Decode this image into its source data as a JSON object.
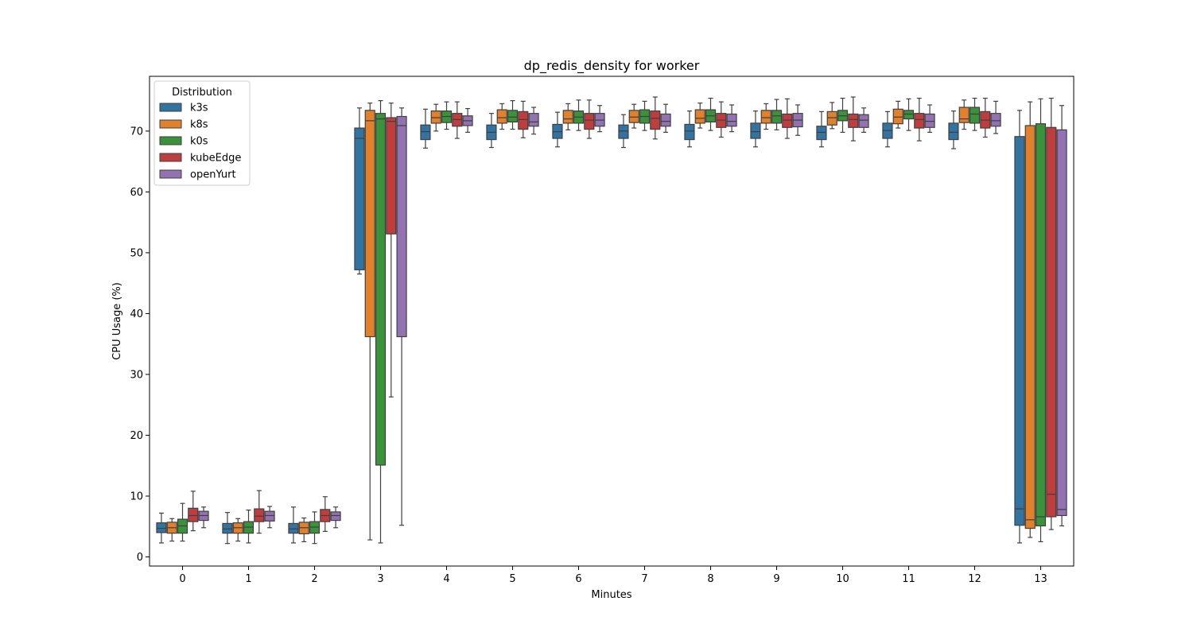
{
  "chart_data": {
    "type": "box",
    "title": "dp_redis_density for worker",
    "xlabel": "Minutes",
    "ylabel": "CPU Usage (%)",
    "ylim": [
      -1.5,
      79
    ],
    "yticks": [
      0,
      10,
      20,
      30,
      40,
      50,
      60,
      70
    ],
    "categories": [
      "0",
      "1",
      "2",
      "3",
      "4",
      "5",
      "6",
      "7",
      "8",
      "9",
      "10",
      "11",
      "12",
      "13"
    ],
    "grid": false,
    "legend": {
      "title": "Distribution",
      "placement": "top-left"
    },
    "series": [
      {
        "name": "k3s",
        "color": "#3274a1",
        "boxes": [
          {
            "lo": 2.3,
            "q1": 4.0,
            "med": 4.7,
            "q3": 5.6,
            "hi": 7.2
          },
          {
            "lo": 2.2,
            "q1": 3.9,
            "med": 4.6,
            "q3": 5.5,
            "hi": 7.3
          },
          {
            "lo": 2.3,
            "q1": 3.9,
            "med": 4.6,
            "q3": 5.5,
            "hi": 8.2
          },
          {
            "lo": 46.5,
            "q1": 47.2,
            "med": 68.8,
            "q3": 70.5,
            "hi": 73.8
          },
          {
            "lo": 67.2,
            "q1": 68.6,
            "med": 69.9,
            "q3": 71.0,
            "hi": 73.6
          },
          {
            "lo": 67.3,
            "q1": 68.6,
            "med": 69.8,
            "q3": 71.0,
            "hi": 72.9
          },
          {
            "lo": 67.4,
            "q1": 68.8,
            "med": 69.9,
            "q3": 71.1,
            "hi": 73.1
          },
          {
            "lo": 67.3,
            "q1": 68.8,
            "med": 70.0,
            "q3": 71.0,
            "hi": 72.7
          },
          {
            "lo": 67.4,
            "q1": 68.6,
            "med": 70.0,
            "q3": 71.1,
            "hi": 73.3
          },
          {
            "lo": 67.4,
            "q1": 68.8,
            "med": 69.9,
            "q3": 71.3,
            "hi": 73.3
          },
          {
            "lo": 67.4,
            "q1": 68.6,
            "med": 69.8,
            "q3": 70.8,
            "hi": 73.2
          },
          {
            "lo": 67.4,
            "q1": 68.8,
            "med": 70.1,
            "q3": 71.3,
            "hi": 73.2
          },
          {
            "lo": 67.1,
            "q1": 68.6,
            "med": 69.8,
            "q3": 71.3,
            "hi": 73.3
          },
          {
            "lo": 2.3,
            "q1": 5.2,
            "med": 7.9,
            "q3": 69.1,
            "hi": 73.4
          }
        ]
      },
      {
        "name": "k8s",
        "color": "#e1812c",
        "boxes": [
          {
            "lo": 2.6,
            "q1": 3.9,
            "med": 4.8,
            "q3": 5.7,
            "hi": 6.3
          },
          {
            "lo": 2.6,
            "q1": 3.9,
            "med": 4.8,
            "q3": 5.6,
            "hi": 6.3
          },
          {
            "lo": 2.5,
            "q1": 3.8,
            "med": 4.8,
            "q3": 5.7,
            "hi": 6.4
          },
          {
            "lo": 2.8,
            "q1": 36.2,
            "med": 71.7,
            "q3": 73.4,
            "hi": 74.6
          },
          {
            "lo": 70.0,
            "q1": 71.3,
            "med": 72.2,
            "q3": 73.3,
            "hi": 74.4
          },
          {
            "lo": 70.3,
            "q1": 71.3,
            "med": 72.2,
            "q3": 73.5,
            "hi": 74.5
          },
          {
            "lo": 70.2,
            "q1": 71.3,
            "med": 72.0,
            "q3": 73.4,
            "hi": 74.5
          },
          {
            "lo": 70.5,
            "q1": 71.4,
            "med": 72.3,
            "q3": 73.4,
            "hi": 74.4
          },
          {
            "lo": 70.5,
            "q1": 71.3,
            "med": 72.1,
            "q3": 73.5,
            "hi": 74.6
          },
          {
            "lo": 70.3,
            "q1": 71.3,
            "med": 72.2,
            "q3": 73.4,
            "hi": 74.5
          },
          {
            "lo": 70.4,
            "q1": 71.0,
            "med": 72.2,
            "q3": 73.2,
            "hi": 74.7
          },
          {
            "lo": 70.5,
            "q1": 71.2,
            "med": 72.3,
            "q3": 73.6,
            "hi": 74.9
          },
          {
            "lo": 70.3,
            "q1": 71.4,
            "med": 72.0,
            "q3": 73.9,
            "hi": 75.1
          },
          {
            "lo": 3.2,
            "q1": 4.7,
            "med": 6.1,
            "q3": 70.9,
            "hi": 74.8
          }
        ]
      },
      {
        "name": "k0s",
        "color": "#3a923a",
        "boxes": [
          {
            "lo": 2.6,
            "q1": 3.9,
            "med": 5.1,
            "q3": 6.2,
            "hi": 8.8
          },
          {
            "lo": 2.3,
            "q1": 3.9,
            "med": 4.9,
            "q3": 5.8,
            "hi": 7.7
          },
          {
            "lo": 2.2,
            "q1": 3.9,
            "med": 4.9,
            "q3": 5.8,
            "hi": 7.4
          },
          {
            "lo": 2.3,
            "q1": 15.1,
            "med": 72.0,
            "q3": 72.9,
            "hi": 75.0
          },
          {
            "lo": 70.3,
            "q1": 71.4,
            "med": 72.4,
            "q3": 73.3,
            "hi": 74.8
          },
          {
            "lo": 70.3,
            "q1": 71.5,
            "med": 72.3,
            "q3": 73.4,
            "hi": 75.0
          },
          {
            "lo": 70.1,
            "q1": 71.3,
            "med": 72.3,
            "q3": 73.3,
            "hi": 75.1
          },
          {
            "lo": 70.1,
            "q1": 71.3,
            "med": 72.4,
            "q3": 73.5,
            "hi": 74.9
          },
          {
            "lo": 70.1,
            "q1": 71.5,
            "med": 72.5,
            "q3": 73.5,
            "hi": 75.4
          },
          {
            "lo": 70.2,
            "q1": 71.3,
            "med": 72.5,
            "q3": 73.4,
            "hi": 75.2
          },
          {
            "lo": 69.8,
            "q1": 71.7,
            "med": 72.5,
            "q3": 73.4,
            "hi": 75.4
          },
          {
            "lo": 70.1,
            "q1": 72.0,
            "med": 72.8,
            "q3": 73.4,
            "hi": 75.3
          },
          {
            "lo": 70.1,
            "q1": 71.3,
            "med": 72.8,
            "q3": 73.9,
            "hi": 75.4
          },
          {
            "lo": 2.5,
            "q1": 5.1,
            "med": 6.6,
            "q3": 71.2,
            "hi": 75.3
          }
        ]
      },
      {
        "name": "kubeEdge",
        "color": "#c03d3e",
        "boxes": [
          {
            "lo": 4.3,
            "q1": 5.8,
            "med": 6.8,
            "q3": 8.0,
            "hi": 10.8
          },
          {
            "lo": 3.9,
            "q1": 5.8,
            "med": 6.7,
            "q3": 7.9,
            "hi": 10.9
          },
          {
            "lo": 4.2,
            "q1": 5.8,
            "med": 6.8,
            "q3": 7.8,
            "hi": 9.9
          },
          {
            "lo": 26.3,
            "q1": 53.1,
            "med": 71.6,
            "q3": 72.2,
            "hi": 74.6
          },
          {
            "lo": 68.8,
            "q1": 70.8,
            "med": 71.9,
            "q3": 72.9,
            "hi": 74.8
          },
          {
            "lo": 68.9,
            "q1": 70.3,
            "med": 71.9,
            "q3": 73.2,
            "hi": 74.9
          },
          {
            "lo": 68.8,
            "q1": 70.3,
            "med": 71.8,
            "q3": 72.9,
            "hi": 75.1
          },
          {
            "lo": 68.7,
            "q1": 70.3,
            "med": 72.1,
            "q3": 73.3,
            "hi": 75.6
          },
          {
            "lo": 69.0,
            "q1": 70.6,
            "med": 71.8,
            "q3": 72.9,
            "hi": 74.8
          },
          {
            "lo": 68.8,
            "q1": 70.6,
            "med": 71.8,
            "q3": 72.8,
            "hi": 75.3
          },
          {
            "lo": 68.4,
            "q1": 70.6,
            "med": 71.9,
            "q3": 72.8,
            "hi": 75.6
          },
          {
            "lo": 68.4,
            "q1": 70.5,
            "med": 71.9,
            "q3": 72.9,
            "hi": 75.4
          },
          {
            "lo": 69.0,
            "q1": 70.5,
            "med": 71.8,
            "q3": 73.2,
            "hi": 75.4
          },
          {
            "lo": 4.5,
            "q1": 6.6,
            "med": 10.3,
            "q3": 70.6,
            "hi": 75.4
          }
        ]
      },
      {
        "name": "openYurt",
        "color": "#9372b2",
        "boxes": [
          {
            "lo": 4.8,
            "q1": 6.0,
            "med": 6.8,
            "q3": 7.5,
            "hi": 8.2
          },
          {
            "lo": 4.8,
            "q1": 5.9,
            "med": 6.8,
            "q3": 7.5,
            "hi": 8.3
          },
          {
            "lo": 4.8,
            "q1": 6.0,
            "med": 6.8,
            "q3": 7.4,
            "hi": 8.2
          },
          {
            "lo": 5.2,
            "q1": 36.2,
            "med": 70.9,
            "q3": 72.4,
            "hi": 73.8
          },
          {
            "lo": 69.8,
            "q1": 70.9,
            "med": 71.7,
            "q3": 72.5,
            "hi": 73.7
          },
          {
            "lo": 69.5,
            "q1": 70.8,
            "med": 71.5,
            "q3": 72.9,
            "hi": 73.9
          },
          {
            "lo": 69.9,
            "q1": 70.8,
            "med": 71.8,
            "q3": 72.9,
            "hi": 74.2
          },
          {
            "lo": 69.8,
            "q1": 70.8,
            "med": 71.6,
            "q3": 72.8,
            "hi": 74.4
          },
          {
            "lo": 69.9,
            "q1": 70.8,
            "med": 71.6,
            "q3": 72.8,
            "hi": 74.3
          },
          {
            "lo": 69.3,
            "q1": 70.7,
            "med": 71.8,
            "q3": 72.9,
            "hi": 74.3
          },
          {
            "lo": 69.8,
            "q1": 70.6,
            "med": 71.8,
            "q3": 72.7,
            "hi": 73.8
          },
          {
            "lo": 69.8,
            "q1": 70.6,
            "med": 71.6,
            "q3": 72.8,
            "hi": 74.3
          },
          {
            "lo": 69.6,
            "q1": 70.8,
            "med": 71.7,
            "q3": 72.9,
            "hi": 74.9
          },
          {
            "lo": 5.1,
            "q1": 6.8,
            "med": 7.8,
            "q3": 70.2,
            "hi": 74.2
          }
        ]
      }
    ]
  }
}
